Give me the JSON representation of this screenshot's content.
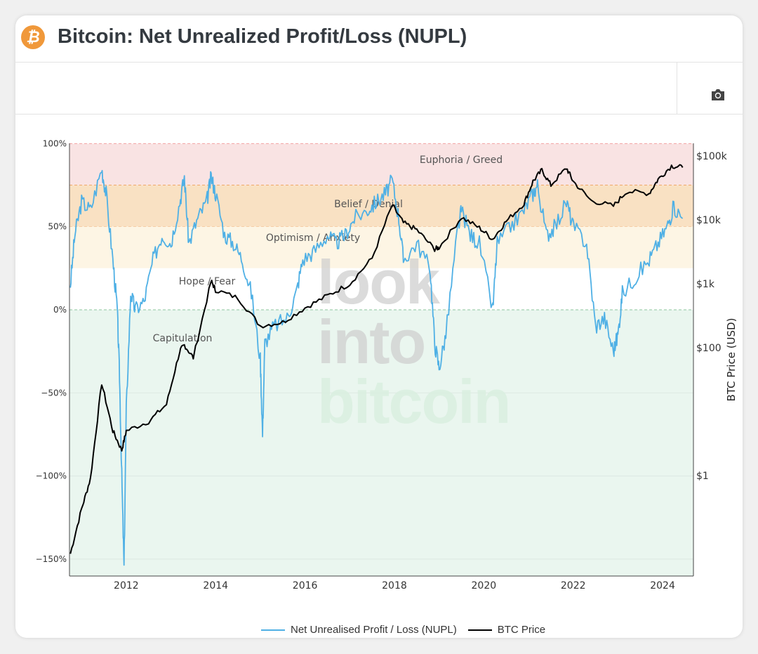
{
  "header": {
    "title": "Bitcoin: Net Unrealized Profit/Loss (NUPL)",
    "logo_icon": "bitcoin-icon"
  },
  "toolbar": {
    "camera_icon": "camera-icon"
  },
  "watermark": [
    "look",
    "into",
    "bitcoin"
  ],
  "chart_data": {
    "type": "line",
    "title": "Bitcoin: Net Unrealized Profit/Loss (NUPL)",
    "x_range": [
      2010.73,
      2024.69
    ],
    "x_ticks": [
      2012,
      2014,
      2016,
      2018,
      2020,
      2022,
      2024
    ],
    "x_tick_labels": [
      "2012",
      "2014",
      "2016",
      "2018",
      "2020",
      "2022",
      "2024"
    ],
    "y_left": {
      "range": [
        -160,
        100
      ],
      "ticks": [
        100,
        50,
        0,
        -50,
        -100,
        -150
      ],
      "tick_labels": [
        "100%",
        "50%",
        "0%",
        "−50%",
        "−100%",
        "−150%"
      ]
    },
    "y_right": {
      "label": "BTC Price (USD)",
      "scale": "log",
      "range_log10": [
        -1.4,
        2.98
      ],
      "ticks": [
        100000,
        10000,
        1000,
        100,
        1
      ],
      "tick_labels": [
        "$100k",
        "$10k",
        "$1k",
        "$100",
        "$1"
      ]
    },
    "zones": [
      {
        "name": "Euphoria / Greed",
        "from": 75,
        "to": 100,
        "color": "#f9e3e3",
        "line": "#f2a3a3"
      },
      {
        "name": "Belief / Denial",
        "from": 50,
        "to": 75,
        "color": "#f9e1c3",
        "line": "#f0a868"
      },
      {
        "name": "Optimism / Anxiety",
        "from": 25,
        "to": 50,
        "color": "#fdf5e4",
        "line": null
      },
      {
        "name": "Hope / Fear",
        "from": 0,
        "to": 25,
        "color": "#ffffff",
        "line": null
      },
      {
        "name": "Capitulation",
        "from": -160,
        "to": 0,
        "color": "#eaf6ef",
        "line": "#8fc79f"
      }
    ],
    "series": [
      {
        "name": "Net Unrealised Profit / Loss (NUPL)",
        "color": "#4fb0e5",
        "axis": "left",
        "x": [
          2010.75,
          2010.85,
          2011.0,
          2011.2,
          2011.45,
          2011.55,
          2011.7,
          2011.8,
          2011.85,
          2011.9,
          2011.95,
          2012.0,
          2012.1,
          2012.2,
          2012.4,
          2012.6,
          2012.8,
          2013.0,
          2013.2,
          2013.3,
          2013.4,
          2013.6,
          2013.8,
          2013.9,
          2014.0,
          2014.2,
          2014.4,
          2014.6,
          2014.8,
          2015.0,
          2015.05,
          2015.1,
          2015.3,
          2015.6,
          2015.8,
          2015.95,
          2016.2,
          2016.5,
          2016.7,
          2016.9,
          2017.1,
          2017.4,
          2017.6,
          2017.8,
          2017.95,
          2018.1,
          2018.2,
          2018.5,
          2018.8,
          2018.9,
          2019.0,
          2019.15,
          2019.4,
          2019.5,
          2019.7,
          2019.9,
          2020.2,
          2020.3,
          2020.6,
          2020.9,
          2021.1,
          2021.2,
          2021.4,
          2021.6,
          2021.85,
          2022.0,
          2022.3,
          2022.5,
          2022.7,
          2022.9,
          2023.0,
          2023.1,
          2023.4,
          2023.7,
          2023.9,
          2024.1,
          2024.25,
          2024.45
        ],
        "y": [
          15,
          45,
          65,
          60,
          85,
          70,
          30,
          0,
          -40,
          -100,
          -155,
          -60,
          10,
          0,
          5,
          30,
          45,
          40,
          65,
          80,
          40,
          55,
          65,
          80,
          70,
          45,
          40,
          30,
          10,
          -30,
          -75,
          -20,
          -10,
          -5,
          10,
          30,
          35,
          45,
          40,
          45,
          55,
          60,
          65,
          70,
          78,
          55,
          30,
          40,
          25,
          -20,
          -35,
          -15,
          45,
          60,
          45,
          40,
          0,
          40,
          50,
          60,
          70,
          75,
          45,
          50,
          65,
          50,
          40,
          -10,
          -5,
          -25,
          -15,
          10,
          20,
          30,
          40,
          50,
          62,
          55
        ]
      },
      {
        "name": "BTC Price",
        "color": "#000000",
        "axis": "right",
        "x": [
          2010.75,
          2011.0,
          2011.2,
          2011.45,
          2011.7,
          2011.9,
          2012.0,
          2012.5,
          2012.9,
          2013.2,
          2013.3,
          2013.5,
          2013.9,
          2014.0,
          2014.5,
          2015.0,
          2015.5,
          2016.0,
          2016.5,
          2017.0,
          2017.5,
          2017.95,
          2018.2,
          2018.5,
          2018.9,
          2019.0,
          2019.5,
          2019.9,
          2020.2,
          2020.5,
          2020.9,
          2021.1,
          2021.3,
          2021.5,
          2021.85,
          2022.0,
          2022.4,
          2022.9,
          2023.2,
          2023.7,
          2023.9,
          2024.2,
          2024.45
        ],
        "y": [
          0.06,
          0.3,
          0.9,
          28,
          5,
          2.5,
          5,
          7,
          13,
          90,
          110,
          70,
          1100,
          800,
          600,
          220,
          250,
          420,
          650,
          1000,
          2500,
          17000,
          9000,
          7000,
          3500,
          3700,
          11000,
          7500,
          5000,
          9500,
          18000,
          40000,
          60000,
          35000,
          65000,
          40000,
          20000,
          16500,
          28000,
          26000,
          43000,
          70000,
          66000
        ]
      }
    ],
    "legend": [
      "Net Unrealised Profit / Loss (NUPL)",
      "BTC Price"
    ],
    "legend_position": "bottom-center",
    "grid": true
  }
}
